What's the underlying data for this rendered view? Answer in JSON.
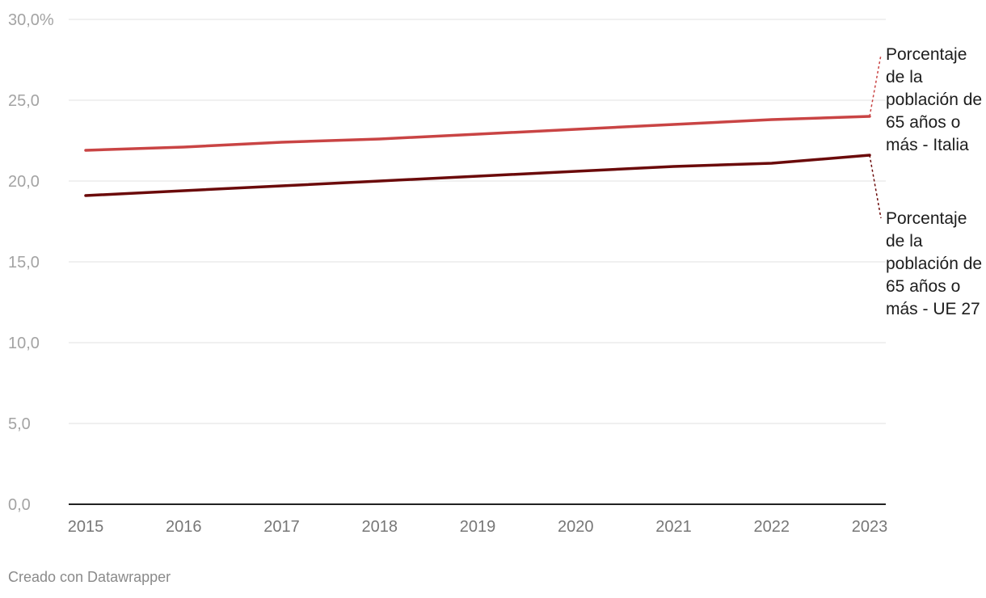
{
  "chart_data": {
    "type": "line",
    "x": [
      "2015",
      "2016",
      "2017",
      "2018",
      "2019",
      "2020",
      "2021",
      "2022",
      "2023"
    ],
    "ylim": [
      0,
      30
    ],
    "yticks": [
      0,
      5,
      10,
      15,
      20,
      25,
      30
    ],
    "ytick_labels": [
      "0,0",
      "5,0",
      "10,0",
      "15,0",
      "20,0",
      "25,0",
      "30,0%"
    ],
    "grid": "horizontal",
    "legend": "direct labels at right end of lines",
    "series": [
      {
        "name": "Porcentaje de la población de 65 años o más - Italia",
        "color": "#c94444",
        "values": [
          21.9,
          22.1,
          22.4,
          22.6,
          22.9,
          23.2,
          23.5,
          23.8,
          24.0
        ]
      },
      {
        "name": "Porcentaje de la población de 65 años o más - UE 27",
        "color": "#6b0a0a",
        "values": [
          19.1,
          19.4,
          19.7,
          20.0,
          20.3,
          20.6,
          20.9,
          21.1,
          21.6
        ]
      }
    ]
  },
  "footer": "Creado con Datawrapper"
}
